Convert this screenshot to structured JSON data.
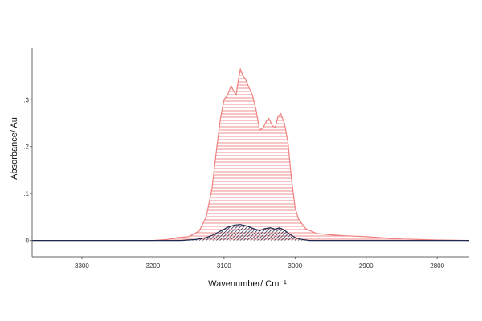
{
  "chart_data": {
    "type": "area",
    "title": "",
    "xlabel": "Wavenumber/ Cm⁻¹",
    "ylabel": "Absorbance/ Au",
    "x_reversed": true,
    "xlim": [
      3370,
      2755
    ],
    "ylim": [
      -0.035,
      0.41
    ],
    "x_ticks": [
      3300,
      3200,
      3100,
      3000,
      2900,
      2800
    ],
    "x_tick_labels": [
      "3300",
      "3200",
      "3100",
      "3000",
      "2900",
      "2800"
    ],
    "y_ticks": [
      0,
      0.1,
      0.2,
      0.3
    ],
    "y_tick_labels": [
      "0",
      ".1",
      ".2",
      ".3"
    ],
    "grid": false,
    "legend": "none",
    "series": [
      {
        "color": "#f08080",
        "fill": "horizontal-hatch",
        "points": [
          [
            3370,
            0.0
          ],
          [
            3250,
            0.0
          ],
          [
            3200,
            0.0
          ],
          [
            3180,
            0.002
          ],
          [
            3165,
            0.006
          ],
          [
            3150,
            0.008
          ],
          [
            3135,
            0.02
          ],
          [
            3125,
            0.05
          ],
          [
            3117,
            0.11
          ],
          [
            3110,
            0.2
          ],
          [
            3105,
            0.26
          ],
          [
            3100,
            0.3
          ],
          [
            3095,
            0.31
          ],
          [
            3090,
            0.33
          ],
          [
            3087,
            0.32
          ],
          [
            3083,
            0.31
          ],
          [
            3080,
            0.34
          ],
          [
            3077,
            0.365
          ],
          [
            3073,
            0.35
          ],
          [
            3070,
            0.345
          ],
          [
            3066,
            0.33
          ],
          [
            3060,
            0.31
          ],
          [
            3055,
            0.28
          ],
          [
            3050,
            0.235
          ],
          [
            3045,
            0.24
          ],
          [
            3040,
            0.255
          ],
          [
            3037,
            0.26
          ],
          [
            3032,
            0.245
          ],
          [
            3028,
            0.24
          ],
          [
            3024,
            0.265
          ],
          [
            3020,
            0.27
          ],
          [
            3015,
            0.25
          ],
          [
            3010,
            0.21
          ],
          [
            3005,
            0.13
          ],
          [
            3000,
            0.07
          ],
          [
            2995,
            0.045
          ],
          [
            2985,
            0.025
          ],
          [
            2970,
            0.015
          ],
          [
            2950,
            0.012
          ],
          [
            2930,
            0.01
          ],
          [
            2900,
            0.008
          ],
          [
            2870,
            0.005
          ],
          [
            2850,
            0.003
          ],
          [
            2800,
            0.001
          ],
          [
            2755,
            0.0
          ]
        ]
      },
      {
        "color": "#1b2a4e",
        "fill": "diagonal-hatch",
        "points": [
          [
            3370,
            0.0
          ],
          [
            3160,
            0.0
          ],
          [
            3140,
            0.002
          ],
          [
            3125,
            0.006
          ],
          [
            3115,
            0.012
          ],
          [
            3105,
            0.02
          ],
          [
            3095,
            0.028
          ],
          [
            3085,
            0.033
          ],
          [
            3077,
            0.034
          ],
          [
            3068,
            0.031
          ],
          [
            3058,
            0.025
          ],
          [
            3050,
            0.021
          ],
          [
            3043,
            0.025
          ],
          [
            3035,
            0.027
          ],
          [
            3028,
            0.024
          ],
          [
            3022,
            0.027
          ],
          [
            3016,
            0.023
          ],
          [
            3008,
            0.014
          ],
          [
            3000,
            0.006
          ],
          [
            2990,
            0.002
          ],
          [
            2980,
            0.0
          ],
          [
            2755,
            0.0
          ]
        ]
      }
    ]
  }
}
